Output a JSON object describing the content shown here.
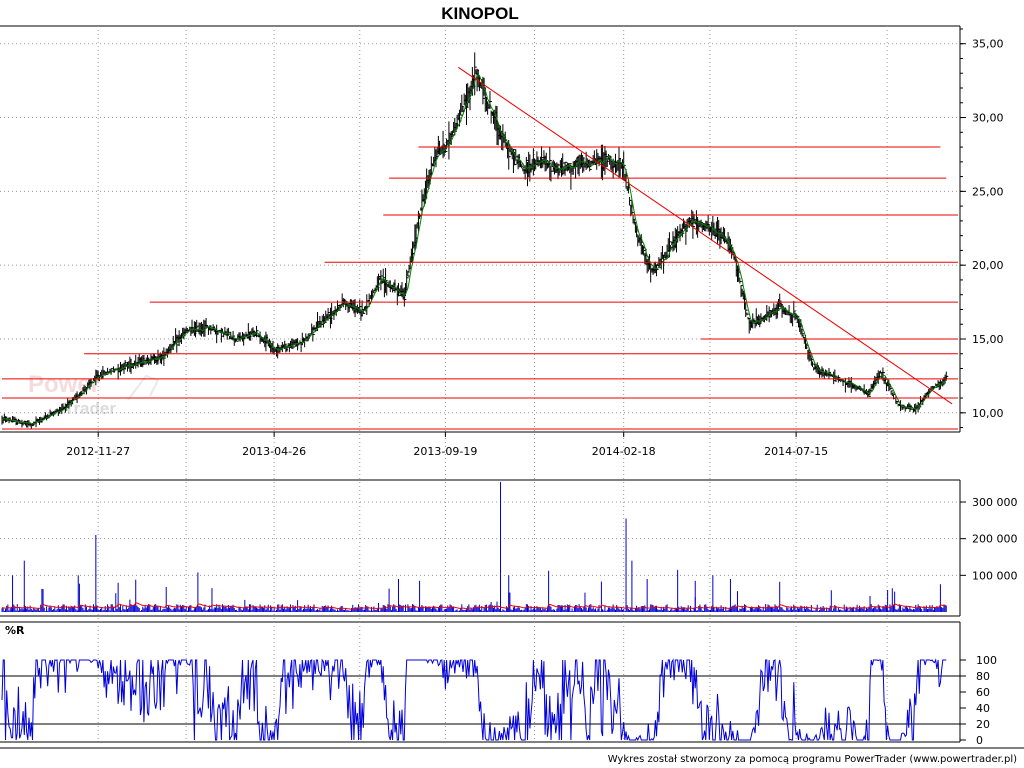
{
  "title": "KINOPOL",
  "footer": "Wykres został stworzony za pomocą programu PowerTrader (www.powertrader.pl)",
  "watermark": {
    "line1": "Power",
    "line2": "Trader"
  },
  "colors": {
    "price": "#000000",
    "trend": "#ee0000",
    "smooth": "#008000",
    "volume": "#0000cc",
    "volume_avg": "#ee0000",
    "wr": "#0000dd",
    "grid": "#999999"
  },
  "chart_data": [
    {
      "type": "line",
      "title": "KINOPOL",
      "x_ticks": [
        "2012-11-27",
        "2013-04-26",
        "2013-09-19",
        "2014-02-18",
        "2014-07-15"
      ],
      "y_ticks": [
        "10,00",
        "15,00",
        "20,00",
        "25,00",
        "30,00",
        "35,00"
      ],
      "ylim": [
        8.7,
        36.2
      ],
      "x": [
        "2012-09-06",
        "2012-10-01",
        "2012-11-01",
        "2012-11-27",
        "2012-12-20",
        "2013-01-20",
        "2013-02-10",
        "2013-03-01",
        "2013-03-25",
        "2013-04-10",
        "2013-04-26",
        "2013-05-20",
        "2013-06-10",
        "2013-06-25",
        "2013-07-10",
        "2013-07-25",
        "2013-08-15",
        "2013-08-28",
        "2013-09-10",
        "2013-09-19",
        "2013-10-01",
        "2013-10-15",
        "2013-10-25",
        "2013-11-10",
        "2013-11-25",
        "2013-12-10",
        "2013-12-25",
        "2014-01-10",
        "2014-01-25",
        "2014-02-05",
        "2014-02-18",
        "2014-03-01",
        "2014-03-15",
        "2014-04-01",
        "2014-04-15",
        "2014-05-01",
        "2014-05-12",
        "2014-05-22",
        "2014-06-05",
        "2014-06-20",
        "2014-07-01",
        "2014-07-15",
        "2014-07-30",
        "2014-08-15",
        "2014-09-01",
        "2014-09-15",
        "2014-09-25",
        "2014-10-10",
        "2014-10-25",
        "2014-11-05",
        "2014-11-20"
      ],
      "close": [
        9.6,
        9.2,
        10.5,
        12.5,
        13.2,
        13.8,
        15.5,
        15.8,
        15.0,
        15.4,
        14.3,
        14.8,
        16.5,
        17.5,
        16.8,
        19.0,
        18.0,
        23.5,
        27.5,
        28.0,
        30.0,
        33.0,
        31.0,
        28.0,
        26.5,
        27.0,
        26.5,
        26.8,
        27.0,
        27.2,
        26.5,
        22.0,
        19.5,
        21.5,
        23.0,
        22.5,
        22.0,
        21.0,
        16.0,
        16.5,
        17.2,
        16.5,
        13.0,
        12.5,
        11.8,
        11.3,
        12.8,
        10.5,
        10.2,
        11.5,
        12.3
      ],
      "trend_lines": [
        {
          "from": [
            "2013-09-30",
            33.4
          ],
          "to": [
            "2014-11-25",
            10.6
          ]
        }
      ],
      "horizontal_levels": [
        {
          "value": 8.9,
          "x_from": "2012-09-06",
          "x_to": "2014-11-30"
        },
        {
          "value": 11.0,
          "x_from": "2012-09-06",
          "x_to": "2014-11-30"
        },
        {
          "value": 12.3,
          "x_from": "2012-09-06",
          "x_to": "2014-11-30"
        },
        {
          "value": 14.0,
          "x_from": "2012-11-15",
          "x_to": "2014-11-30"
        },
        {
          "value": 15.0,
          "x_from": "2014-04-25",
          "x_to": "2014-11-30"
        },
        {
          "value": 17.5,
          "x_from": "2013-01-10",
          "x_to": "2014-11-30"
        },
        {
          "value": 20.2,
          "x_from": "2013-06-08",
          "x_to": "2014-11-30"
        },
        {
          "value": 23.4,
          "x_from": "2013-07-28",
          "x_to": "2014-11-30"
        },
        {
          "value": 25.9,
          "x_from": "2013-08-02",
          "x_to": "2014-11-20"
        },
        {
          "value": 28.0,
          "x_from": "2013-08-27",
          "x_to": "2014-11-15"
        }
      ]
    },
    {
      "type": "bar",
      "y_ticks": [
        "100 000",
        "200 000",
        "300 000"
      ],
      "ylim": [
        0,
        360000
      ],
      "spikes": [
        {
          "x": "2012-09-15",
          "value": 100000
        },
        {
          "x": "2012-09-25",
          "value": 140000
        },
        {
          "x": "2012-11-10",
          "value": 100000
        },
        {
          "x": "2012-11-25",
          "value": 210000
        },
        {
          "x": "2013-08-10",
          "value": 90000
        },
        {
          "x": "2013-08-28",
          "value": 85000
        },
        {
          "x": "2013-11-05",
          "value": 355000
        },
        {
          "x": "2013-11-12",
          "value": 100000
        },
        {
          "x": "2014-02-20",
          "value": 255000
        },
        {
          "x": "2014-02-25",
          "value": 140000
        },
        {
          "x": "2014-03-10",
          "value": 90000
        },
        {
          "x": "2014-04-05",
          "value": 115000
        },
        {
          "x": "2014-04-20",
          "value": 85000
        },
        {
          "x": "2014-05-05",
          "value": 100000
        },
        {
          "x": "2014-05-20",
          "value": 90000
        },
        {
          "x": "2014-10-01",
          "value": 60000
        }
      ],
      "baseline_volume": 12000
    },
    {
      "type": "line",
      "title": "%R",
      "y_ticks": [
        "0",
        "20",
        "40",
        "60",
        "80",
        "100"
      ],
      "ylim": [
        0,
        100
      ],
      "reference_lines": [
        20,
        80
      ]
    }
  ]
}
